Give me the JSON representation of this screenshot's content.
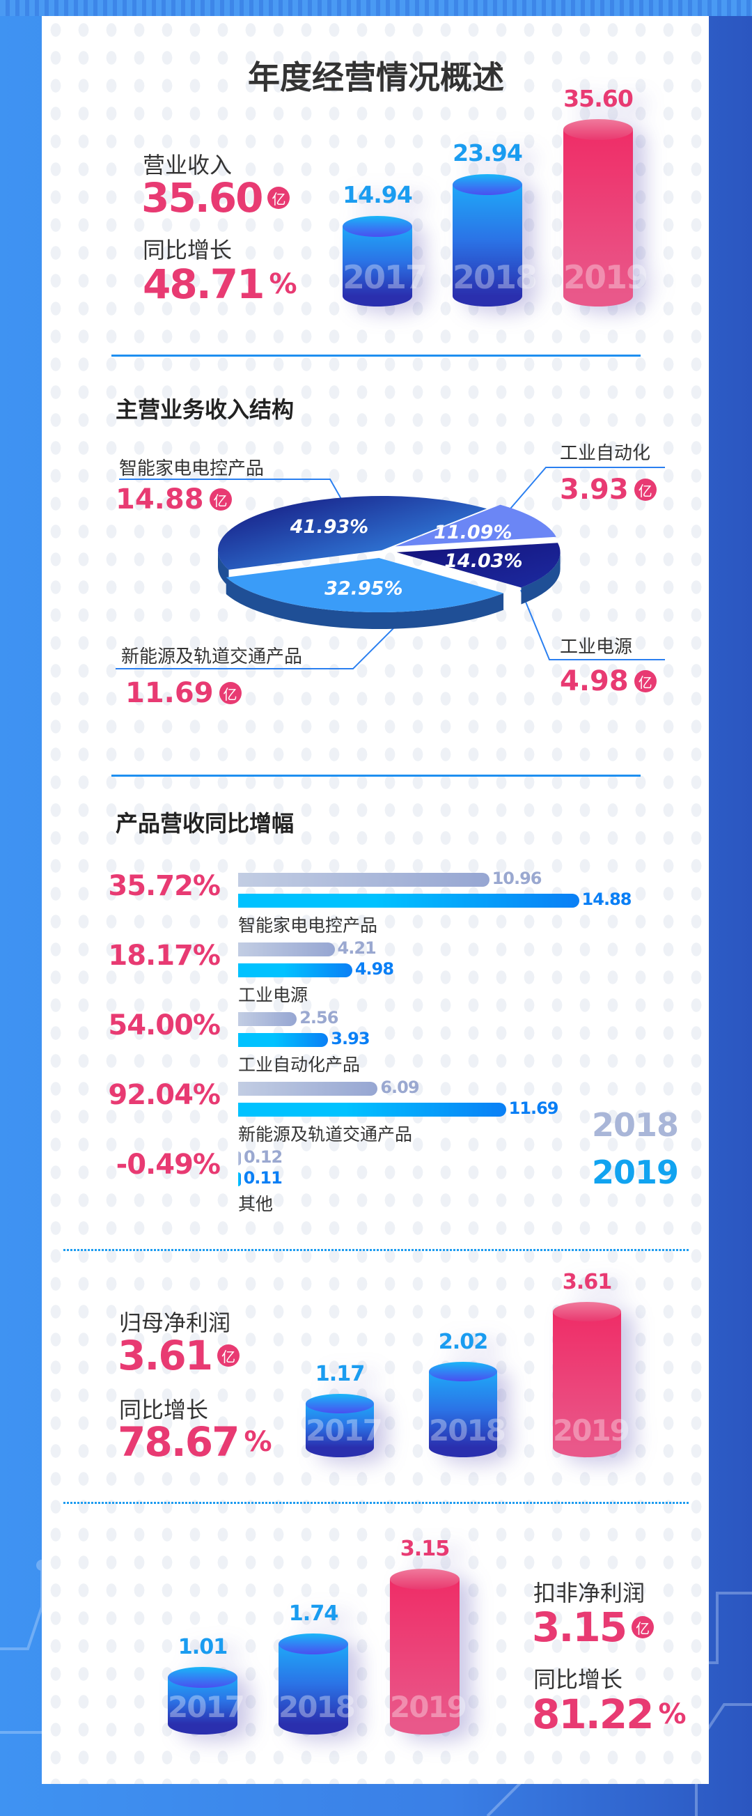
{
  "title": "年度经营情况概述",
  "colors": {
    "accent_pink": "#e83a72",
    "accent_blue": "#1a9cf0",
    "label_2018": "#9aa8d0",
    "divider": "#1e8ff0"
  },
  "unit_badge": "亿",
  "revenue": {
    "label": "营业收入",
    "value": "35.60",
    "growth_label": "同比增长",
    "growth_value": "48.71",
    "growth_unit": "%",
    "bars": [
      {
        "year": "2017",
        "value": 14.94,
        "label": "14.94"
      },
      {
        "year": "2018",
        "value": 23.94,
        "label": "23.94"
      },
      {
        "year": "2019",
        "value": 35.6,
        "label": "35.60"
      }
    ]
  },
  "structure": {
    "title": "主营业务收入结构",
    "slices": [
      {
        "name": "智能家电电控产品",
        "amount": "14.88",
        "percent": 41.93,
        "percent_label": "41.93%",
        "color": "#1e40b0"
      },
      {
        "name": "工业自动化",
        "amount": "3.93",
        "percent": 11.09,
        "percent_label": "11.09%",
        "color": "#6b86f5"
      },
      {
        "name": "工业电源",
        "amount": "4.98",
        "percent": 14.03,
        "percent_label": "14.03%",
        "color": "#14127a"
      },
      {
        "name": "新能源及轨道交通产品",
        "amount": "11.69",
        "percent": 32.95,
        "percent_label": "32.95%",
        "color": "#3a9cf8"
      }
    ]
  },
  "growth": {
    "title": "产品营收同比增幅",
    "legend": [
      "2018",
      "2019"
    ],
    "rows": [
      {
        "name": "智能家电电控产品",
        "pct": "35.72%",
        "v2018": 10.96,
        "l2018": "10.96",
        "v2019": 14.88,
        "l2019": "14.88"
      },
      {
        "name": "工业电源",
        "pct": "18.17%",
        "v2018": 4.21,
        "l2018": "4.21",
        "v2019": 4.98,
        "l2019": "4.98"
      },
      {
        "name": "工业自动化产品",
        "pct": "54.00%",
        "v2018": 2.56,
        "l2018": "2.56",
        "v2019": 3.93,
        "l2019": "3.93"
      },
      {
        "name": "新能源及轨道交通产品",
        "pct": "92.04%",
        "v2018": 6.09,
        "l2018": "6.09",
        "v2019": 11.69,
        "l2019": "11.69"
      },
      {
        "name": "其他",
        "pct": "-0.49%",
        "v2018": 0.12,
        "l2018": "0.12",
        "v2019": 0.11,
        "l2019": "0.11"
      }
    ]
  },
  "net_profit": {
    "label": "归母净利润",
    "value": "3.61",
    "growth_label": "同比增长",
    "growth_value": "78.67",
    "growth_unit": "%",
    "bars": [
      {
        "year": "2017",
        "value": 1.17,
        "label": "1.17"
      },
      {
        "year": "2018",
        "value": 2.02,
        "label": "2.02"
      },
      {
        "year": "2019",
        "value": 3.61,
        "label": "3.61"
      }
    ]
  },
  "deducted_profit": {
    "label": "扣非净利润",
    "value": "3.15",
    "growth_label": "同比增长",
    "growth_value": "81.22",
    "growth_unit": "%",
    "bars": [
      {
        "year": "2017",
        "value": 1.01,
        "label": "1.01"
      },
      {
        "year": "2018",
        "value": 1.74,
        "label": "1.74"
      },
      {
        "year": "2019",
        "value": 3.15,
        "label": "3.15"
      }
    ]
  }
}
